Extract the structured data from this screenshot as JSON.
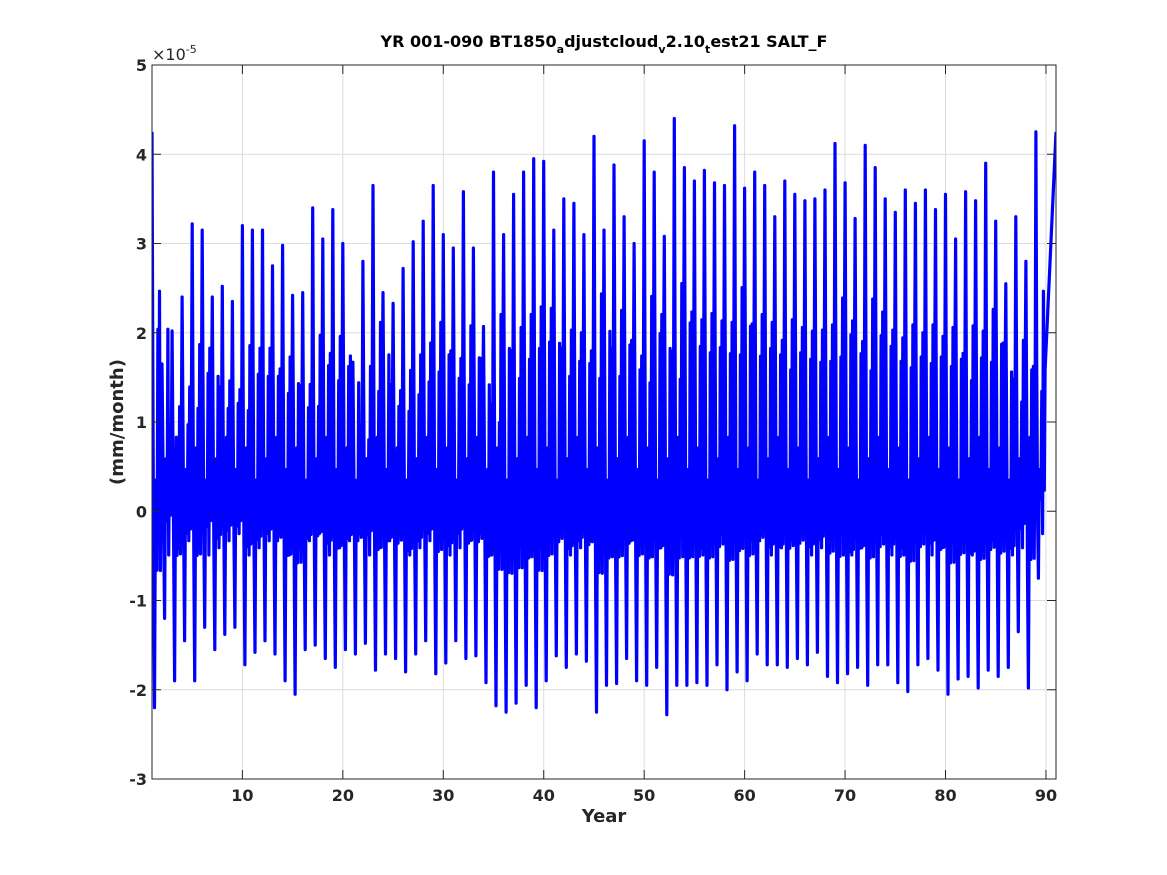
{
  "chart_data": {
    "type": "line",
    "title_parts": [
      {
        "text": "YR 001-090 BT1850",
        "sub": false
      },
      {
        "text": "a",
        "sub": true
      },
      {
        "text": "djustcloud",
        "sub": false
      },
      {
        "text": "v",
        "sub": true
      },
      {
        "text": "2.10",
        "sub": false
      },
      {
        "text": "t",
        "sub": true
      },
      {
        "text": "est21 SALT_F",
        "sub": false
      }
    ],
    "xlabel": "Year",
    "ylabel": "(mm/month)",
    "y_exponent": {
      "base": "×10",
      "power": "-5"
    },
    "xlim": [
      1,
      91
    ],
    "ylim": [
      -3,
      5
    ],
    "x_ticks": [
      10,
      20,
      30,
      40,
      50,
      60,
      70,
      80,
      90
    ],
    "x_tick_labels": [
      "10",
      "20",
      "30",
      "40",
      "50",
      "60",
      "70",
      "80",
      "90"
    ],
    "y_ticks": [
      -3,
      -2,
      -1,
      0,
      1,
      2,
      3,
      4,
      5
    ],
    "y_tick_labels": [
      "-3",
      "-2",
      "-1",
      "0",
      "1",
      "2",
      "3",
      "4",
      "5"
    ],
    "grid": true,
    "series": [
      {
        "color": "#0000ff",
        "x_start": 1,
        "x_step_months": 12,
        "sampling": "monthly, one cycle per year (values in units of 1e-5 mm/month)",
        "annual_max": [
          4.25,
          1.65,
          2.02,
          2.4,
          3.22,
          3.15,
          2.4,
          2.52,
          2.35,
          3.2,
          3.15,
          3.15,
          2.75,
          2.98,
          2.42,
          2.45,
          3.4,
          3.05,
          3.38,
          3.0,
          1.67,
          2.8,
          3.65,
          2.45,
          2.33,
          2.72,
          3.02,
          3.25,
          3.65,
          3.1,
          2.95,
          3.58,
          2.95,
          2.07,
          3.8,
          3.1,
          3.55,
          3.8,
          3.95,
          3.92,
          3.15,
          3.5,
          3.45,
          3.1,
          4.2,
          3.15,
          3.88,
          3.3,
          3.0,
          4.15,
          3.8,
          3.08,
          4.4,
          3.85,
          3.7,
          3.82,
          3.68,
          3.65,
          4.32,
          3.62,
          3.8,
          3.65,
          3.3,
          3.7,
          3.55,
          3.48,
          3.5,
          3.6,
          4.12,
          3.68,
          3.28,
          4.1,
          3.85,
          3.5,
          3.35,
          3.6,
          3.45,
          3.6,
          3.38,
          3.55,
          3.05,
          3.58,
          3.48,
          3.9,
          3.25,
          2.55,
          3.3,
          2.8,
          4.25
        ],
        "annual_min": [
          -2.2,
          -1.2,
          -1.9,
          -1.45,
          -1.9,
          -1.3,
          -1.55,
          -1.38,
          -1.3,
          -1.72,
          -1.58,
          -1.45,
          -1.6,
          -1.9,
          -2.05,
          -1.55,
          -1.5,
          -1.65,
          -1.75,
          -1.55,
          -1.6,
          -1.48,
          -1.78,
          -1.6,
          -1.65,
          -1.8,
          -1.6,
          -1.45,
          -1.82,
          -1.7,
          -1.45,
          -1.65,
          -1.62,
          -1.92,
          -2.18,
          -2.25,
          -2.15,
          -1.95,
          -2.2,
          -1.9,
          -1.62,
          -1.75,
          -1.6,
          -1.68,
          -2.25,
          -1.95,
          -1.93,
          -1.65,
          -1.9,
          -1.95,
          -1.75,
          -2.28,
          -1.95,
          -1.95,
          -1.92,
          -1.95,
          -1.72,
          -2.0,
          -1.8,
          -1.9,
          -1.6,
          -1.72,
          -1.72,
          -1.75,
          -1.65,
          -1.72,
          -1.58,
          -1.85,
          -1.92,
          -1.82,
          -1.75,
          -1.95,
          -1.72,
          -1.72,
          -1.92,
          -2.02,
          -1.72,
          -1.65,
          -1.78,
          -2.05,
          -1.88,
          -1.85,
          -1.98,
          -1.78,
          -1.85,
          -1.75,
          -1.35,
          -1.98,
          -0.75
        ]
      }
    ]
  }
}
